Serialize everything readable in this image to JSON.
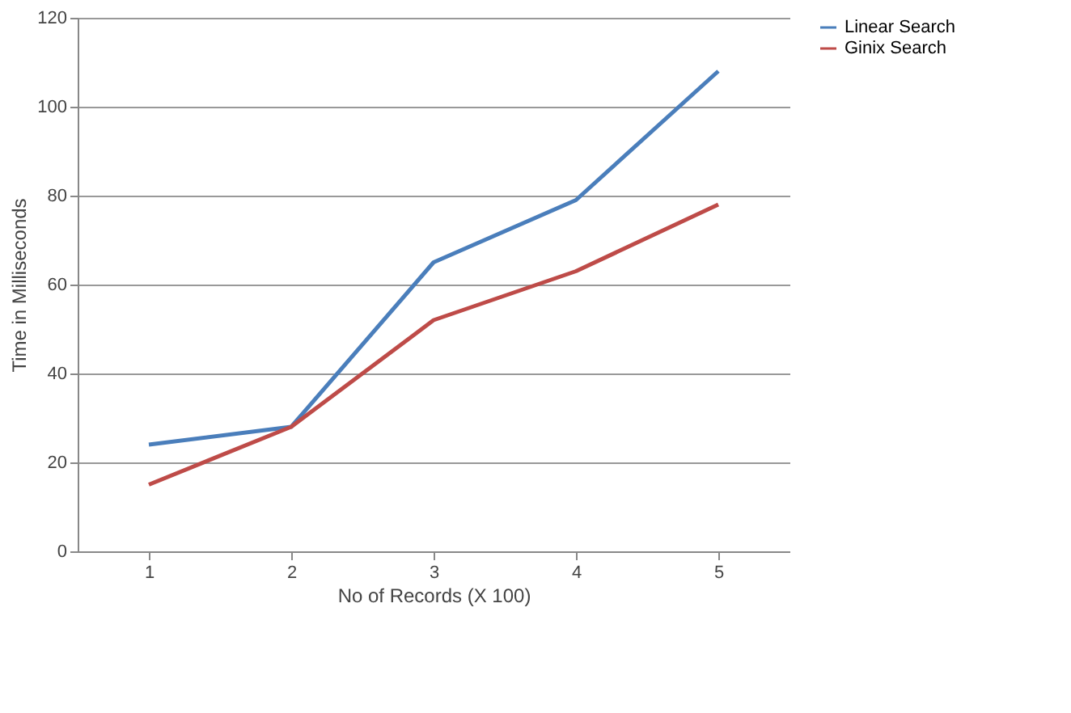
{
  "chart_data": {
    "type": "line",
    "xlabel": "No of Records (X 100)",
    "ylabel": "Time in Milliseconds",
    "categories": [
      "1",
      "2",
      "3",
      "4",
      "5"
    ],
    "series": [
      {
        "name": "Linear Search",
        "color": "#4a7ebb",
        "values": [
          24,
          28,
          65,
          79,
          108
        ]
      },
      {
        "name": "Ginix Search",
        "color": "#be4b48",
        "values": [
          15,
          28,
          52,
          63,
          78
        ]
      }
    ],
    "ylim": [
      0,
      120
    ],
    "yticks": [
      0,
      20,
      40,
      60,
      80,
      100,
      120
    ],
    "grid": "y",
    "legend": "right",
    "marker": "none"
  }
}
